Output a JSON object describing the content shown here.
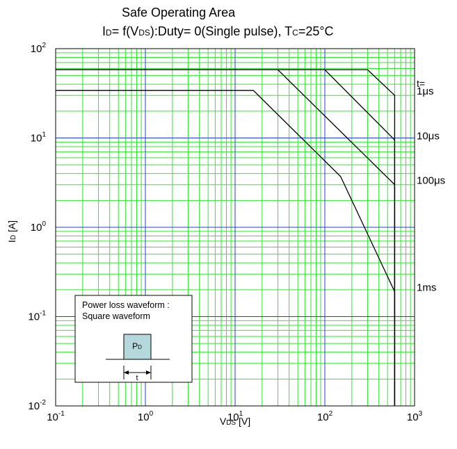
{
  "chart_data": {
    "type": "line",
    "title": "Safe Operating Area",
    "subtitle": {
      "prefix": "I",
      "prefix_sub": "D",
      "mid": "= f(V",
      "mid_sub": "DS",
      "rest": "):Duty= 0(Single pulse), T",
      "rest_sub": "C",
      "suffix": "=25°C"
    },
    "xlabel": {
      "main": "V",
      "sub": "DS",
      "unit": " [V]"
    },
    "ylabel": {
      "main": "I",
      "sub": "D",
      "unit": " [A]"
    },
    "x_scale": "log",
    "y_scale": "log",
    "xlim": [
      0.1,
      1000
    ],
    "ylim": [
      0.01,
      100
    ],
    "x_ticks": [
      {
        "base": "10",
        "exp": "-1"
      },
      {
        "base": "10",
        "exp": "0"
      },
      {
        "base": "10",
        "exp": "1"
      },
      {
        "base": "10",
        "exp": "2"
      },
      {
        "base": "10",
        "exp": "3"
      }
    ],
    "y_ticks": [
      {
        "base": "10",
        "exp": "-2"
      },
      {
        "base": "10",
        "exp": "-1"
      },
      {
        "base": "10",
        "exp": "0"
      },
      {
        "base": "10",
        "exp": "1"
      },
      {
        "base": "10",
        "exp": "2"
      }
    ],
    "grid": true,
    "grid_major_color": "#1f3fd4",
    "grid_minor_color": "#33e633",
    "line_color": "#000000",
    "t_label": "t=",
    "series": [
      {
        "name": "1μs",
        "x": [
          0.1,
          300,
          600,
          600
        ],
        "y": [
          58,
          58,
          30,
          0.01
        ]
      },
      {
        "name": "10μs",
        "x": [
          0.1,
          100,
          600,
          600
        ],
        "y": [
          58,
          58,
          9.5,
          0.01
        ]
      },
      {
        "name": "100μs",
        "x": [
          0.1,
          30,
          600,
          600
        ],
        "y": [
          58,
          58,
          3,
          0.01
        ]
      },
      {
        "name": "1ms",
        "x": [
          0.1,
          16,
          150,
          600,
          600
        ],
        "y": [
          34,
          34,
          3.7,
          0.19,
          0.01
        ]
      }
    ],
    "inset": {
      "title_line1": "Power loss waveform :",
      "title_line2": "Square waveform",
      "pulse_label_main": "P",
      "pulse_label_sub": "D",
      "width_label": "t"
    }
  }
}
